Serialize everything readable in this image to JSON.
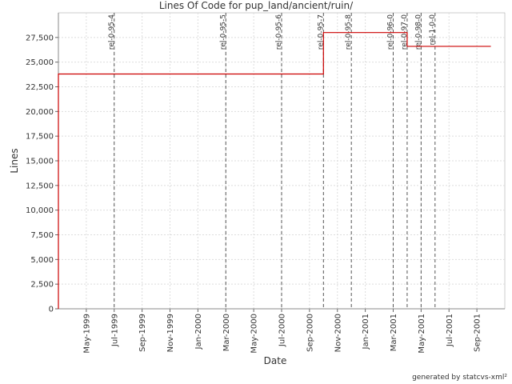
{
  "chart_data": {
    "type": "step-line",
    "title": "Lines Of Code for pup_land/ancient/ruin/",
    "x_label": "Date",
    "y_label": "Lines",
    "footer": "generated by statcvs-xml²",
    "x": [
      "1999-03",
      "1999-03",
      "2000-10",
      "2000-10",
      "2001-04",
      "2001-04",
      "2001-10"
    ],
    "values": [
      0,
      23800,
      23800,
      28000,
      28000,
      26600,
      26600
    ],
    "color": "#cc0000",
    "xlim": [
      "1999-03",
      "2001-11"
    ],
    "xticks": [
      {
        "value": "1999-05",
        "label": "May-1999"
      },
      {
        "value": "1999-07",
        "label": "Jul-1999"
      },
      {
        "value": "1999-09",
        "label": "Sep-1999"
      },
      {
        "value": "1999-11",
        "label": "Nov-1999"
      },
      {
        "value": "2000-01",
        "label": "Jan-2000"
      },
      {
        "value": "2000-03",
        "label": "Mar-2000"
      },
      {
        "value": "2000-05",
        "label": "May-2000"
      },
      {
        "value": "2000-07",
        "label": "Jul-2000"
      },
      {
        "value": "2000-09",
        "label": "Sep-2000"
      },
      {
        "value": "2000-11",
        "label": "Nov-2000"
      },
      {
        "value": "2001-01",
        "label": "Jan-2001"
      },
      {
        "value": "2001-03",
        "label": "Mar-2001"
      },
      {
        "value": "2001-05",
        "label": "May-2001"
      },
      {
        "value": "2001-07",
        "label": "Jul-2001"
      },
      {
        "value": "2001-09",
        "label": "Sep-2001"
      }
    ],
    "ylim": [
      0,
      30000
    ],
    "yticks": [
      0,
      {
        "value": 2500,
        "label": "2,500"
      },
      {
        "value": 5000,
        "label": "5,000"
      },
      {
        "value": 7500,
        "label": "7,500"
      },
      {
        "value": 10000,
        "label": "10,000"
      },
      {
        "value": 12500,
        "label": "12,500"
      },
      {
        "value": 15000,
        "label": "15,000"
      },
      {
        "value": 17500,
        "label": "17,500"
      },
      {
        "value": 20000,
        "label": "20,000"
      },
      {
        "value": 22500,
        "label": "22,500"
      },
      {
        "value": 25000,
        "label": "25,000"
      },
      {
        "value": 27500,
        "label": "27,500"
      }
    ],
    "grid": true,
    "markers": [
      {
        "label": "rel-0-95-4",
        "x": "1999-07"
      },
      {
        "label": "rel-0-95-5",
        "x": "2000-03"
      },
      {
        "label": "rel-0-95-6",
        "x": "2000-07"
      },
      {
        "label": "rel-0-95-7",
        "x": "2000-10"
      },
      {
        "label": "rel-0-95-8",
        "x": "2000-12"
      },
      {
        "label": "rel-0-96-0",
        "x": "2001-03"
      },
      {
        "label": "rel-0-97-0",
        "x": "2001-04"
      },
      {
        "label": "rel-0-98-0",
        "x": "2001-05"
      },
      {
        "label": "rel-1-0-0",
        "x": "2001-06"
      }
    ]
  }
}
